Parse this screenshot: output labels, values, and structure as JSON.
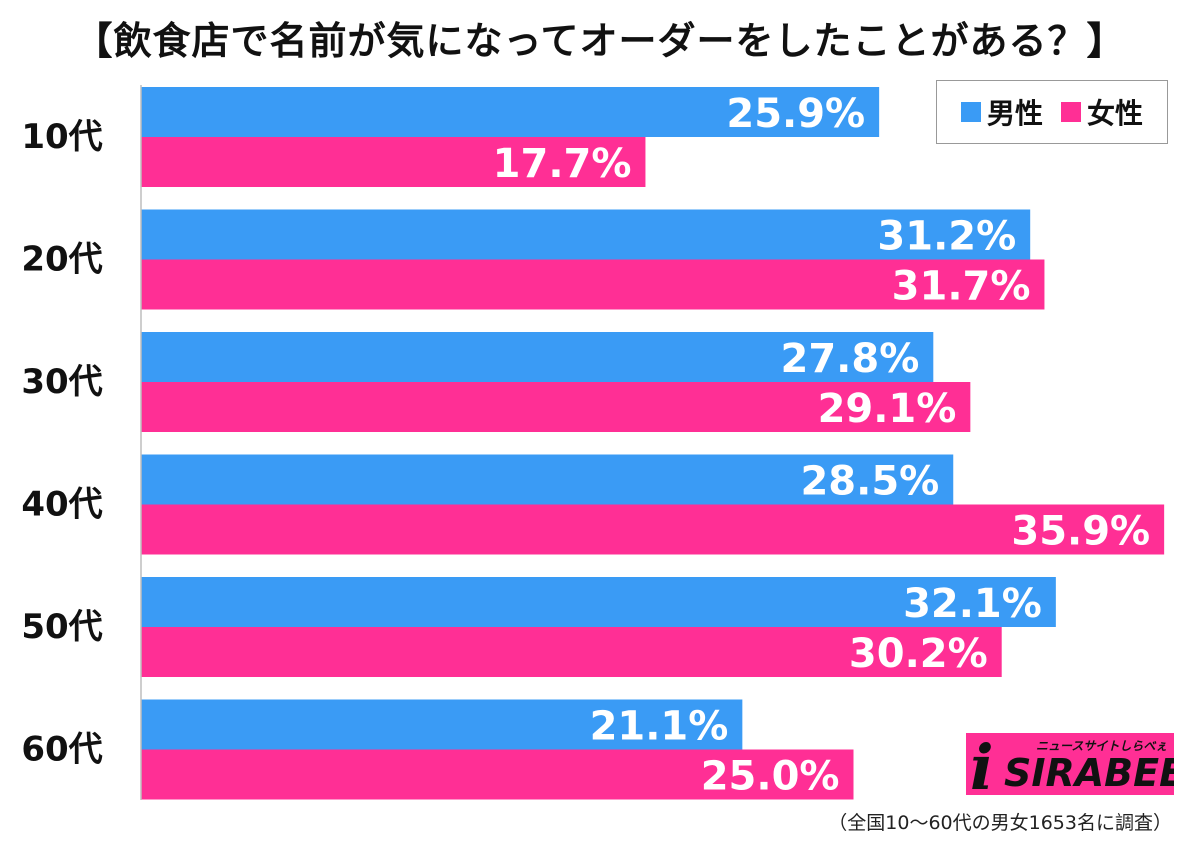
{
  "chart_data": {
    "type": "bar",
    "orientation": "horizontal",
    "title": "【飲食店で名前が気になってオーダーをしたことがある？】",
    "categories": [
      "10代",
      "20代",
      "30代",
      "40代",
      "50代",
      "60代"
    ],
    "series": [
      {
        "name": "男性",
        "color": "#3a9bf5",
        "values": [
          25.9,
          31.2,
          27.8,
          28.5,
          32.1,
          21.1
        ]
      },
      {
        "name": "女性",
        "color": "#ff2f95",
        "values": [
          17.7,
          31.7,
          29.1,
          35.9,
          30.2,
          25.0
        ]
      }
    ],
    "value_labels": [
      [
        "25.9%",
        "31.2%",
        "27.8%",
        "28.5%",
        "32.1%",
        "21.1%"
      ],
      [
        "17.7%",
        "31.7%",
        "29.1%",
        "35.9%",
        "30.2%",
        "25.0%"
      ]
    ],
    "xlim": [
      0,
      36
    ],
    "grid": false,
    "legend_position": "top-right",
    "footnote": "（全国10〜60代の男女1653名に調査）"
  },
  "logo": {
    "tagline": "ニュースサイトしらべぇ",
    "name": "SIRABEE",
    "mark": "i"
  }
}
